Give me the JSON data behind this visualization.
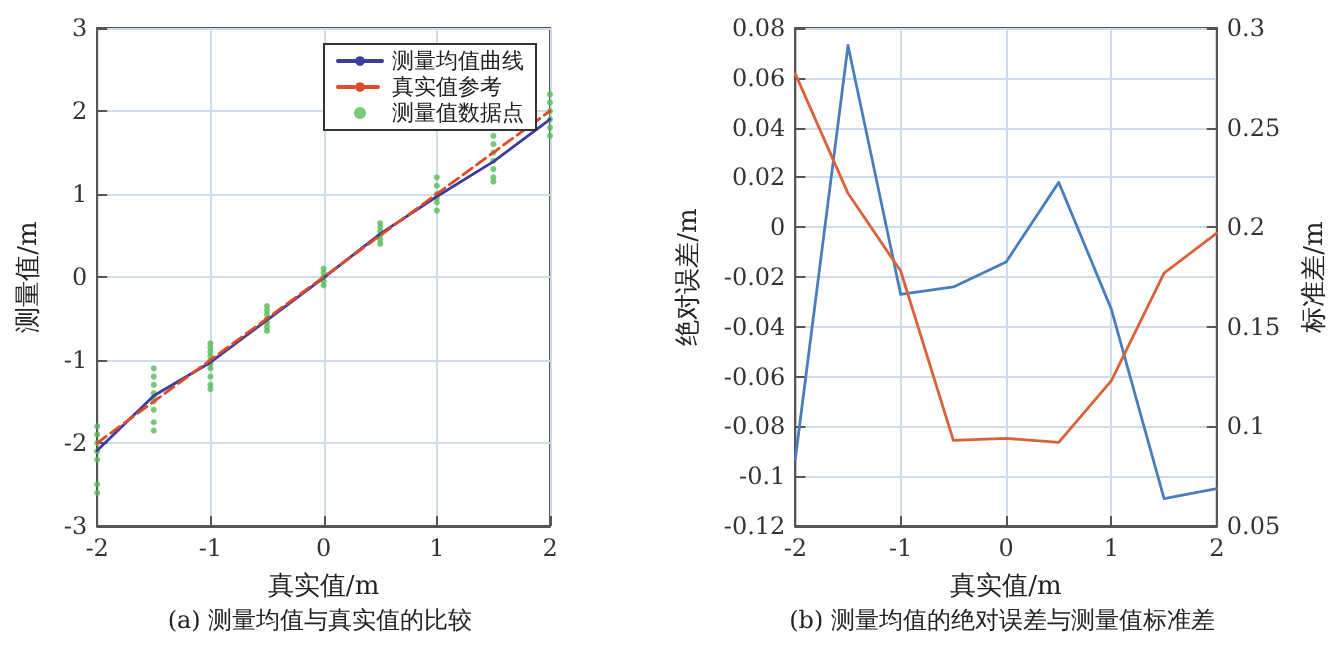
{
  "chart_data": [
    {
      "type": "line",
      "title": "(a) 测量均值与真实值的比较",
      "xlabel": "真实值/m",
      "ylabel": "测量值/m",
      "xlim": [
        -2,
        2
      ],
      "xticks": [
        -2,
        -1,
        0,
        1,
        2
      ],
      "ylim": [
        -3,
        3
      ],
      "yticks": [
        -3,
        -2,
        -1,
        0,
        1,
        2,
        3
      ],
      "grid": true,
      "legend": "top right",
      "marker": "none",
      "x": [
        -2,
        -1.5,
        -1,
        -0.5,
        0,
        0.5,
        1,
        1.5,
        2
      ],
      "series": [
        {
          "name": "测量均值曲线",
          "color": "#3c3c9c",
          "line_style": "solid",
          "values": [
            -2.09,
            -1.43,
            -1.03,
            -0.52,
            -0.01,
            0.52,
            0.97,
            1.39,
            1.9
          ]
        },
        {
          "name": "真实值参考",
          "color": "#e04a2a",
          "line_style": "dashed",
          "x": [
            -2,
            2
          ],
          "values": [
            -2,
            2
          ]
        },
        {
          "name": "测量值数据点",
          "type": "scatter",
          "marker": "circle",
          "color": "#55bb55",
          "x": [
            -2,
            -2,
            -2,
            -2,
            -2,
            -2,
            -2,
            -1.5,
            -1.5,
            -1.5,
            -1.5,
            -1.5,
            -1.5,
            -1.5,
            -1.5,
            -1.5,
            -1,
            -1,
            -1,
            -1,
            -1,
            -1,
            -1,
            -1,
            -1,
            -1,
            -0.5,
            -0.5,
            -0.5,
            -0.5,
            -0.5,
            -0.5,
            -0.5,
            0,
            0,
            0,
            0,
            0,
            0.5,
            0.5,
            0.5,
            0.5,
            0.5,
            0.5,
            1,
            1,
            1,
            1,
            1,
            1,
            1.5,
            1.5,
            1.5,
            1.5,
            1.5,
            1.5,
            1.5,
            2,
            2,
            2,
            2,
            2,
            2
          ],
          "values": [
            -1.8,
            -1.9,
            -2.0,
            -2.1,
            -2.2,
            -2.5,
            -2.6,
            -1.1,
            -1.2,
            -1.3,
            -1.4,
            -1.45,
            -1.5,
            -1.6,
            -1.75,
            -1.85,
            -0.8,
            -0.85,
            -0.9,
            -0.95,
            -1.0,
            -1.05,
            -1.1,
            -1.2,
            -1.3,
            -1.35,
            -0.35,
            -0.4,
            -0.45,
            -0.5,
            -0.55,
            -0.6,
            -0.65,
            0.1,
            0.05,
            0,
            -0.05,
            -0.1,
            0.65,
            0.6,
            0.55,
            0.5,
            0.45,
            0.4,
            1.2,
            1.1,
            1.0,
            0.95,
            0.9,
            0.8,
            1.7,
            1.6,
            1.5,
            1.4,
            1.3,
            1.2,
            1.15,
            2.2,
            2.1,
            2.0,
            1.9,
            1.8,
            1.7
          ]
        }
      ]
    },
    {
      "type": "line",
      "title": "(b) 测量均值的绝对误差与测量值标准差",
      "xlabel": "真实值/m",
      "ylabel": "绝对误差/m",
      "y2label": "标准差/m",
      "xlim": [
        -2,
        2
      ],
      "xticks": [
        -2,
        -1,
        0,
        1,
        2
      ],
      "ylim": [
        -0.12,
        0.08
      ],
      "yticks": [
        -0.12,
        -0.1,
        -0.08,
        -0.06,
        -0.04,
        -0.02,
        0,
        0.02,
        0.04,
        0.06,
        0.08
      ],
      "y2lim": [
        0.05,
        0.3
      ],
      "y2ticks": [
        0.05,
        0.1,
        0.15,
        0.2,
        0.25,
        0.3
      ],
      "grid": true,
      "marker": "none",
      "line_style": "solid",
      "x": [
        -2,
        -1.5,
        -1,
        -0.5,
        0,
        0.5,
        1,
        1.5,
        2
      ],
      "series": [
        {
          "color": "#4a7ebb",
          "values": [
            -0.093,
            0.073,
            -0.027,
            -0.024,
            -0.014,
            0.018,
            -0.033,
            -0.109,
            -0.105
          ]
        },
        {
          "color": "#d9623b",
          "axis": "y2",
          "values": [
            0.277,
            0.217,
            0.178,
            0.093,
            0.094,
            0.092,
            0.123,
            0.177,
            0.197
          ]
        }
      ]
    }
  ]
}
